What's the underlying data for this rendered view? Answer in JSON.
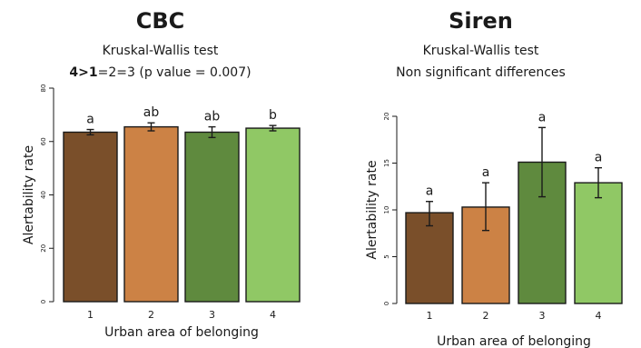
{
  "chart_data": [
    {
      "type": "bar",
      "title": "CBC",
      "subtitle_lines": [
        {
          "bold": "",
          "text": "Kruskal-Wallis test"
        },
        {
          "bold": "4>1",
          "text": "=2=3 (p value = 0.007)"
        }
      ],
      "xlabel": "Urban area of belonging",
      "ylabel": "Alertability rate",
      "categories": [
        "1",
        "2",
        "3",
        "4"
      ],
      "values": [
        63.5,
        65.5,
        63.5,
        65.0
      ],
      "error_low": [
        62.5,
        64.0,
        61.5,
        64.0
      ],
      "error_high": [
        64.5,
        67.0,
        65.5,
        66.0
      ],
      "letters": [
        "a",
        "ab",
        "ab",
        "b"
      ],
      "colors": [
        "#7a4f2a",
        "#cc8245",
        "#5f8a3e",
        "#90c865"
      ],
      "ylim": [
        0,
        80
      ],
      "yticks": [
        0,
        20,
        40,
        60,
        80
      ],
      "grid": false
    },
    {
      "type": "bar",
      "title": "Siren",
      "subtitle_lines": [
        {
          "bold": "",
          "text": "Kruskal-Wallis test"
        },
        {
          "bold": "",
          "text": "Non significant differences"
        }
      ],
      "xlabel": "Urban area of belonging",
      "ylabel": "Alertability rate",
      "categories": [
        "1",
        "2",
        "3",
        "4"
      ],
      "values": [
        9.7,
        10.3,
        15.1,
        12.9
      ],
      "error_low": [
        8.3,
        7.8,
        11.4,
        11.3
      ],
      "error_high": [
        10.9,
        12.9,
        18.8,
        14.5
      ],
      "letters": [
        "a",
        "a",
        "a",
        "a"
      ],
      "colors": [
        "#7a4f2a",
        "#cc8245",
        "#5f8a3e",
        "#90c865"
      ],
      "ylim": [
        0,
        20
      ],
      "yticks": [
        0,
        5,
        10,
        15,
        20
      ],
      "grid": false
    }
  ]
}
